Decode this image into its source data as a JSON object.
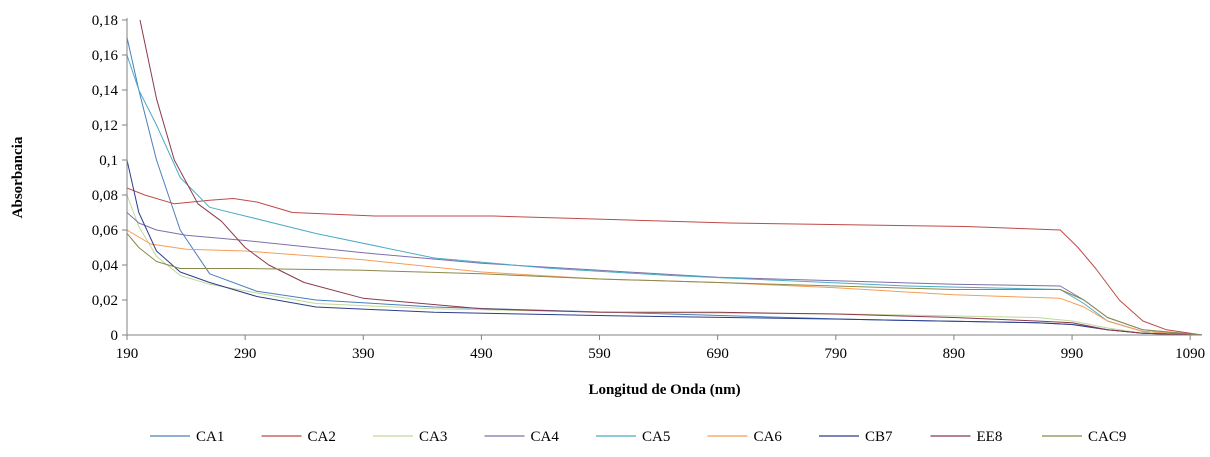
{
  "chart_data": {
    "type": "line",
    "title": "",
    "xlabel": "Longitud de Onda (nm)",
    "ylabel": "Absorbancia",
    "xlim": [
      190,
      1100
    ],
    "ylim": [
      0,
      0.18
    ],
    "x_ticks": [
      "190",
      "290",
      "390",
      "490",
      "590",
      "690",
      "790",
      "890",
      "990",
      "1090"
    ],
    "y_ticks": [
      "0",
      "0,02",
      "0,04",
      "0,06",
      "0,08",
      "0,1",
      "0,12",
      "0,14",
      "0,16",
      "0,18"
    ],
    "grid": false,
    "legend_position": "bottom",
    "series": [
      {
        "name": "CA1",
        "color": "#4a7ebb",
        "points": [
          [
            190,
            0.17
          ],
          [
            200,
            0.14
          ],
          [
            215,
            0.1
          ],
          [
            235,
            0.06
          ],
          [
            260,
            0.035
          ],
          [
            300,
            0.025
          ],
          [
            350,
            0.02
          ],
          [
            450,
            0.016
          ],
          [
            600,
            0.013
          ],
          [
            800,
            0.009
          ],
          [
            960,
            0.007
          ],
          [
            990,
            0.006
          ],
          [
            1020,
            0.003
          ],
          [
            1050,
            0.001
          ],
          [
            1100,
            0
          ]
        ]
      },
      {
        "name": "CA2",
        "color": "#be4b48",
        "points": [
          [
            190,
            0.084
          ],
          [
            205,
            0.08
          ],
          [
            230,
            0.075
          ],
          [
            260,
            0.077
          ],
          [
            280,
            0.078
          ],
          [
            300,
            0.076
          ],
          [
            330,
            0.07
          ],
          [
            400,
            0.068
          ],
          [
            500,
            0.068
          ],
          [
            600,
            0.066
          ],
          [
            700,
            0.064
          ],
          [
            800,
            0.063
          ],
          [
            900,
            0.062
          ],
          [
            980,
            0.06
          ],
          [
            995,
            0.05
          ],
          [
            1010,
            0.038
          ],
          [
            1030,
            0.02
          ],
          [
            1050,
            0.008
          ],
          [
            1070,
            0.003
          ],
          [
            1100,
            0
          ]
        ]
      },
      {
        "name": "CA3",
        "color": "#bfd99a",
        "points": [
          [
            190,
            0.08
          ],
          [
            200,
            0.062
          ],
          [
            215,
            0.045
          ],
          [
            235,
            0.034
          ],
          [
            260,
            0.029
          ],
          [
            300,
            0.024
          ],
          [
            350,
            0.018
          ],
          [
            450,
            0.015
          ],
          [
            600,
            0.013
          ],
          [
            800,
            0.012
          ],
          [
            960,
            0.01
          ],
          [
            990,
            0.008
          ],
          [
            1020,
            0.004
          ],
          [
            1050,
            0.001
          ],
          [
            1100,
            0
          ]
        ]
      },
      {
        "name": "CA4",
        "color": "#7f6fa8",
        "points": [
          [
            190,
            0.07
          ],
          [
            200,
            0.064
          ],
          [
            215,
            0.06
          ],
          [
            240,
            0.057
          ],
          [
            290,
            0.054
          ],
          [
            390,
            0.047
          ],
          [
            490,
            0.041
          ],
          [
            590,
            0.037
          ],
          [
            690,
            0.033
          ],
          [
            790,
            0.031
          ],
          [
            890,
            0.029
          ],
          [
            980,
            0.028
          ],
          [
            1000,
            0.02
          ],
          [
            1020,
            0.01
          ],
          [
            1050,
            0.003
          ],
          [
            1100,
            0
          ]
        ]
      },
      {
        "name": "CA5",
        "color": "#4bacc6",
        "points": [
          [
            190,
            0.16
          ],
          [
            200,
            0.14
          ],
          [
            215,
            0.12
          ],
          [
            235,
            0.09
          ],
          [
            260,
            0.073
          ],
          [
            290,
            0.068
          ],
          [
            350,
            0.058
          ],
          [
            450,
            0.044
          ],
          [
            550,
            0.038
          ],
          [
            650,
            0.034
          ],
          [
            750,
            0.031
          ],
          [
            850,
            0.028
          ],
          [
            980,
            0.026
          ],
          [
            1000,
            0.018
          ],
          [
            1020,
            0.008
          ],
          [
            1050,
            0.002
          ],
          [
            1100,
            0
          ]
        ]
      },
      {
        "name": "CA6",
        "color": "#f59d56",
        "points": [
          [
            190,
            0.06
          ],
          [
            210,
            0.052
          ],
          [
            240,
            0.049
          ],
          [
            290,
            0.048
          ],
          [
            390,
            0.043
          ],
          [
            490,
            0.036
          ],
          [
            590,
            0.032
          ],
          [
            690,
            0.03
          ],
          [
            790,
            0.027
          ],
          [
            890,
            0.023
          ],
          [
            980,
            0.021
          ],
          [
            1000,
            0.016
          ],
          [
            1020,
            0.008
          ],
          [
            1050,
            0.002
          ],
          [
            1100,
            0
          ]
        ]
      },
      {
        "name": "CB7",
        "color": "#2c3e8a",
        "points": [
          [
            190,
            0.1
          ],
          [
            200,
            0.07
          ],
          [
            215,
            0.048
          ],
          [
            235,
            0.036
          ],
          [
            260,
            0.03
          ],
          [
            300,
            0.022
          ],
          [
            350,
            0.016
          ],
          [
            450,
            0.013
          ],
          [
            600,
            0.011
          ],
          [
            800,
            0.009
          ],
          [
            960,
            0.007
          ],
          [
            990,
            0.006
          ],
          [
            1020,
            0.003
          ],
          [
            1050,
            0.001
          ],
          [
            1100,
            0
          ]
        ]
      },
      {
        "name": "EE8",
        "color": "#8b3a4a",
        "points": [
          [
            201,
            0.18
          ],
          [
            215,
            0.135
          ],
          [
            230,
            0.1
          ],
          [
            250,
            0.075
          ],
          [
            270,
            0.065
          ],
          [
            290,
            0.05
          ],
          [
            310,
            0.04
          ],
          [
            340,
            0.03
          ],
          [
            390,
            0.021
          ],
          [
            490,
            0.015
          ],
          [
            590,
            0.013
          ],
          [
            690,
            0.013
          ],
          [
            790,
            0.012
          ],
          [
            890,
            0.01
          ],
          [
            960,
            0.008
          ],
          [
            990,
            0.007
          ],
          [
            1020,
            0.003
          ],
          [
            1050,
            0.001
          ],
          [
            1100,
            0
          ]
        ]
      },
      {
        "name": "CAC9",
        "color": "#8b8a4b",
        "points": [
          [
            190,
            0.058
          ],
          [
            200,
            0.05
          ],
          [
            215,
            0.042
          ],
          [
            235,
            0.038
          ],
          [
            290,
            0.038
          ],
          [
            390,
            0.037
          ],
          [
            490,
            0.035
          ],
          [
            590,
            0.032
          ],
          [
            690,
            0.03
          ],
          [
            790,
            0.028
          ],
          [
            890,
            0.026
          ],
          [
            980,
            0.026
          ],
          [
            1000,
            0.02
          ],
          [
            1020,
            0.01
          ],
          [
            1050,
            0.003
          ],
          [
            1100,
            0
          ]
        ]
      }
    ]
  }
}
